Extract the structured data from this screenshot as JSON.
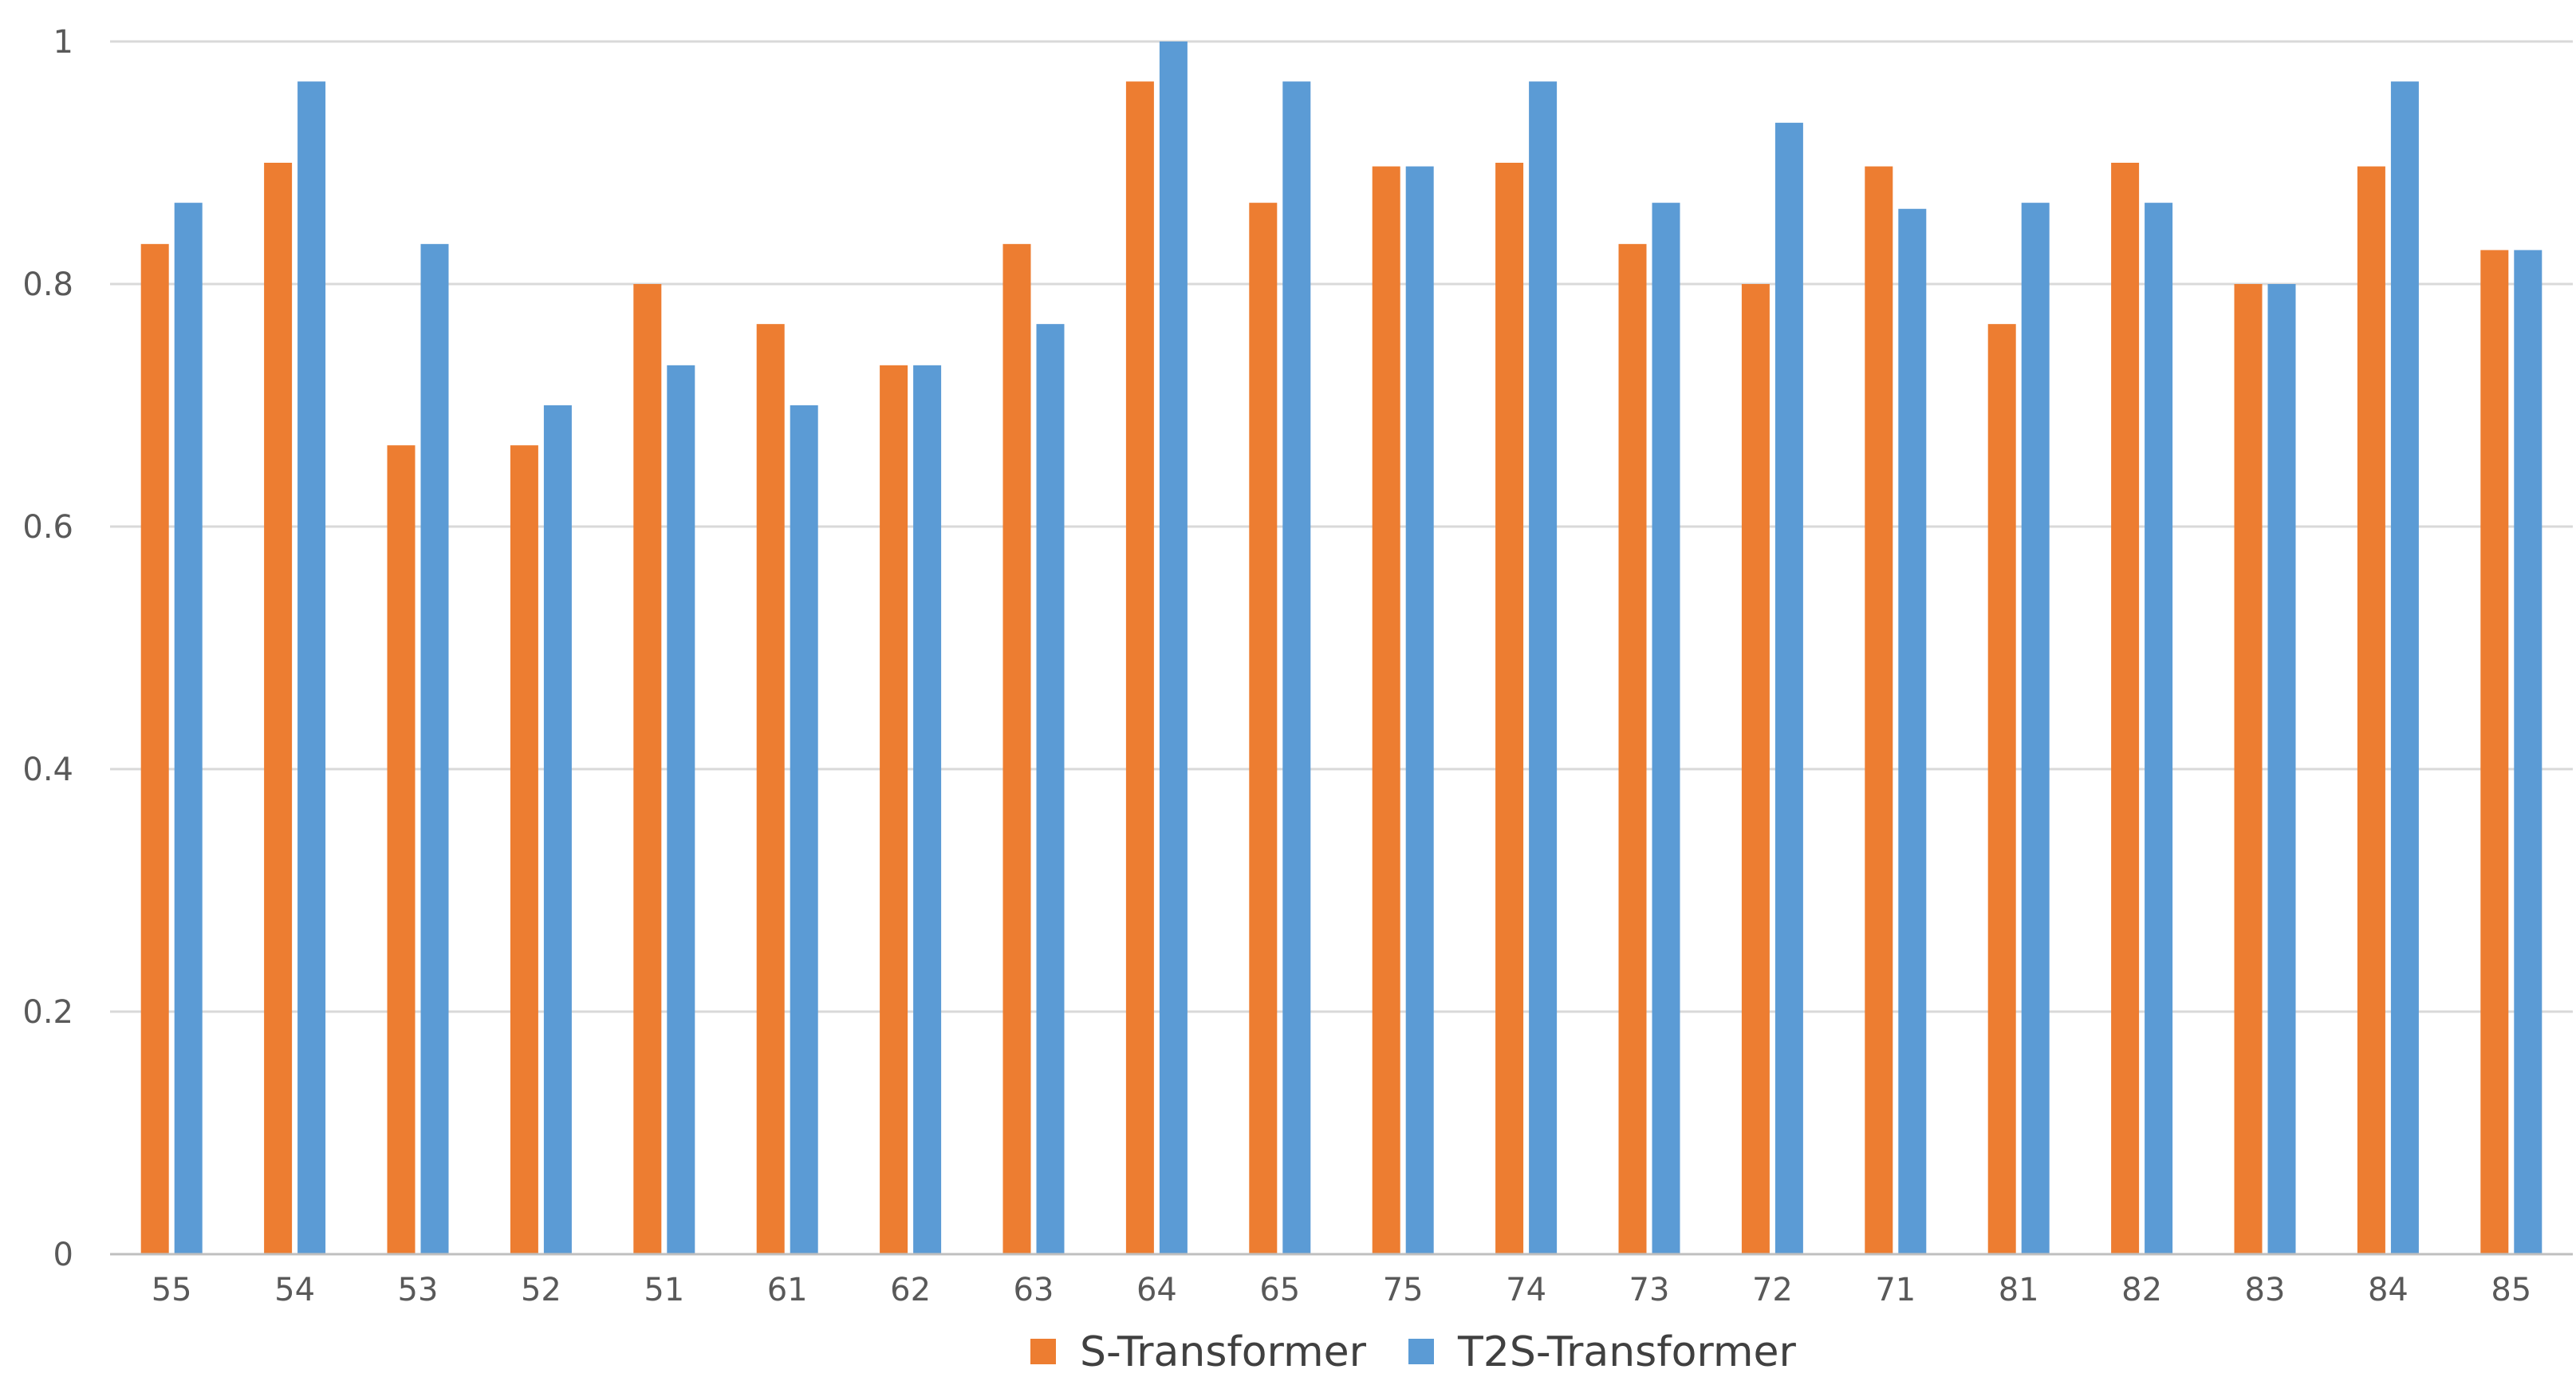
{
  "chart_data": {
    "type": "bar",
    "title": "",
    "xlabel": "",
    "ylabel": "",
    "ylim": [
      0,
      1
    ],
    "yticks": [
      0,
      0.2,
      0.4,
      0.6,
      0.8,
      1
    ],
    "ytick_labels": [
      "0",
      "0.2",
      "0.4",
      "0.6",
      "0.8",
      "1"
    ],
    "grid": true,
    "legend_position": "bottom-center",
    "categories": [
      "55",
      "54",
      "53",
      "52",
      "51",
      "61",
      "62",
      "63",
      "64",
      "65",
      "75",
      "74",
      "73",
      "72",
      "71",
      "81",
      "82",
      "83",
      "84",
      "85"
    ],
    "series": [
      {
        "name": "S-Transformer",
        "color": "#ED7D31",
        "values": [
          0.833,
          0.9,
          0.667,
          0.667,
          0.8,
          0.767,
          0.733,
          0.833,
          0.967,
          0.867,
          0.897,
          0.9,
          0.833,
          0.8,
          0.897,
          0.767,
          0.9,
          0.8,
          0.897,
          0.828
        ]
      },
      {
        "name": "T2S-Transformer",
        "color": "#5B9BD5",
        "values": [
          0.867,
          0.967,
          0.833,
          0.7,
          0.733,
          0.7,
          0.733,
          0.767,
          1.0,
          0.967,
          0.897,
          0.967,
          0.867,
          0.933,
          0.862,
          0.867,
          0.867,
          0.8,
          0.967,
          0.828
        ]
      }
    ],
    "gridline_color": "#D9D9D9",
    "axis_color": "#BFBFBF"
  }
}
